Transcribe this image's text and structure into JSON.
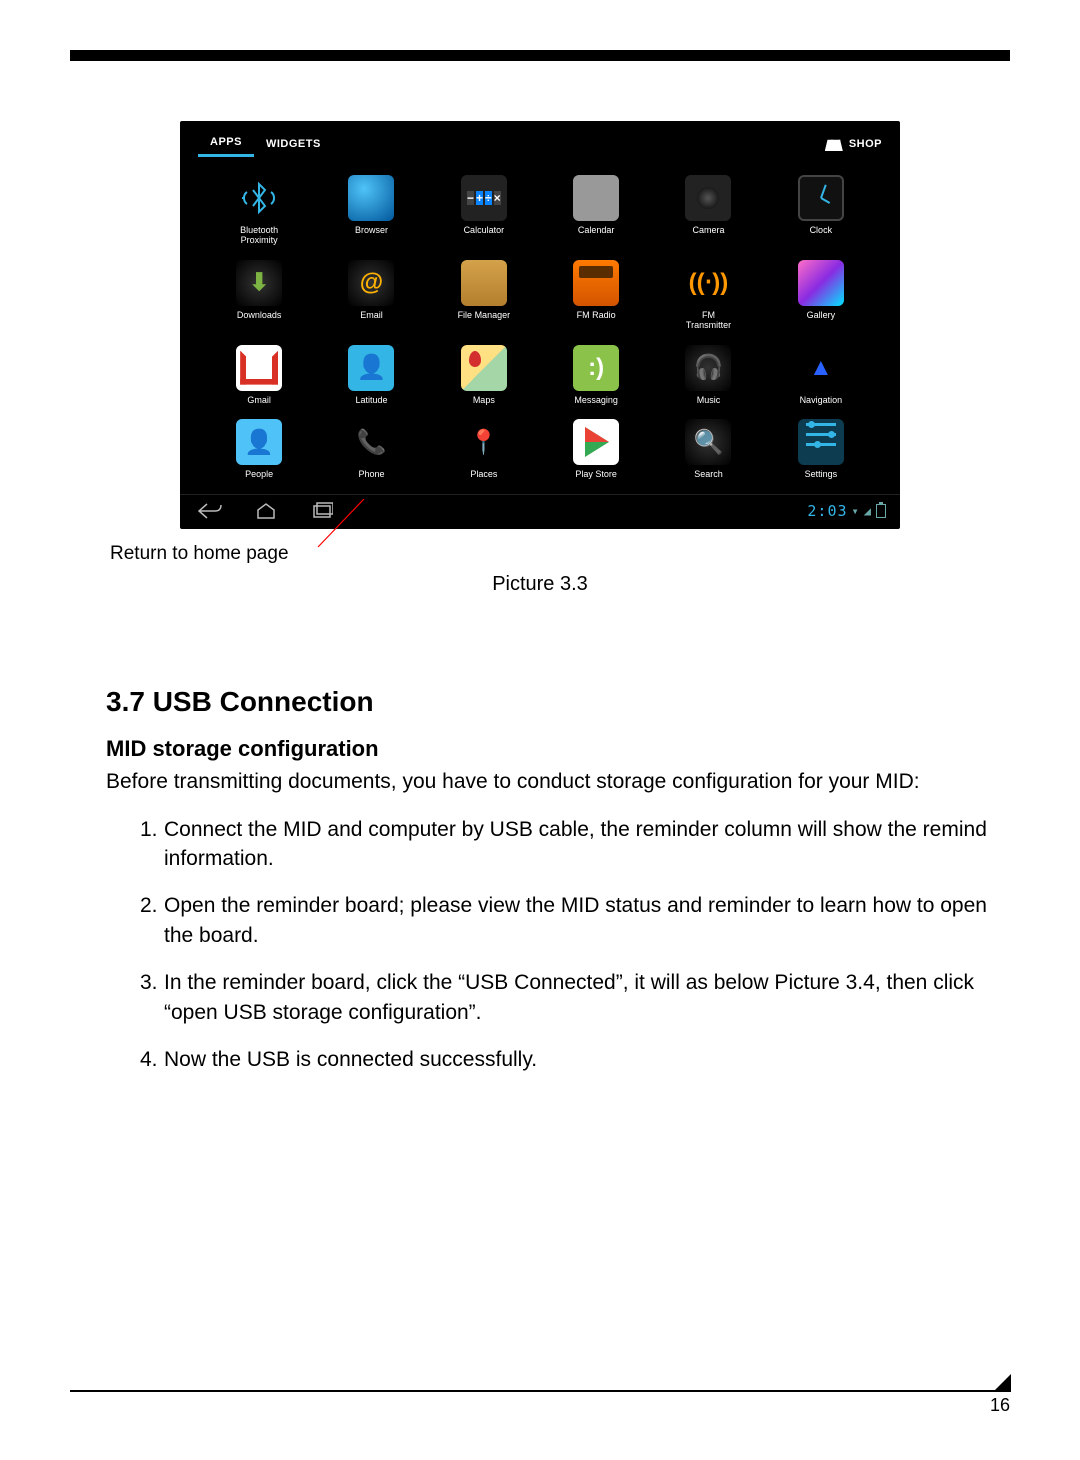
{
  "page_number": "16",
  "screenshot": {
    "tabs": {
      "apps": "APPS",
      "widgets": "WIDGETS"
    },
    "shop": "SHOP",
    "clock": "2:03",
    "apps": [
      {
        "name": "Bluetooth\nProximity",
        "icon": "bt"
      },
      {
        "name": "Browser",
        "icon": "browser"
      },
      {
        "name": "Calculator",
        "icon": "calc"
      },
      {
        "name": "Calendar",
        "icon": "cal"
      },
      {
        "name": "Camera",
        "icon": "cam"
      },
      {
        "name": "Clock",
        "icon": "clock"
      },
      {
        "name": "Downloads",
        "icon": "dl"
      },
      {
        "name": "Email",
        "icon": "email"
      },
      {
        "name": "File Manager",
        "icon": "fm"
      },
      {
        "name": "FM Radio",
        "icon": "radio"
      },
      {
        "name": "FM\nTransmitter",
        "icon": "fmtx"
      },
      {
        "name": "Gallery",
        "icon": "gal"
      },
      {
        "name": "Gmail",
        "icon": "gmail"
      },
      {
        "name": "Latitude",
        "icon": "lat"
      },
      {
        "name": "Maps",
        "icon": "maps"
      },
      {
        "name": "Messaging",
        "icon": "msg"
      },
      {
        "name": "Music",
        "icon": "music"
      },
      {
        "name": "Navigation",
        "icon": "nav"
      },
      {
        "name": "People",
        "icon": "people"
      },
      {
        "name": "Phone",
        "icon": "phone"
      },
      {
        "name": "Places",
        "icon": "places"
      },
      {
        "name": "Play Store",
        "icon": "play"
      },
      {
        "name": "Search",
        "icon": "search"
      },
      {
        "name": "Settings",
        "icon": "settings"
      }
    ]
  },
  "annotation": "Return to home page",
  "caption": "Picture 3.3",
  "heading": "3.7 USB Connection",
  "subheading": "MID storage configuration",
  "intro": "Before transmitting documents, you have to conduct storage configuration for your MID:",
  "steps": [
    "Connect the MID and computer by USB cable, the reminder column will show the remind information.",
    "Open the reminder board; please view the MID status and reminder to learn how to open the board.",
    "In the reminder board, click the “USB Connected”, it will as below Picture 3.4, then click “open USB storage configuration”.",
    "Now the USB is connected successfully."
  ],
  "colors": {
    "accent": "#33b5e5",
    "anno_line": "#ff0000"
  }
}
